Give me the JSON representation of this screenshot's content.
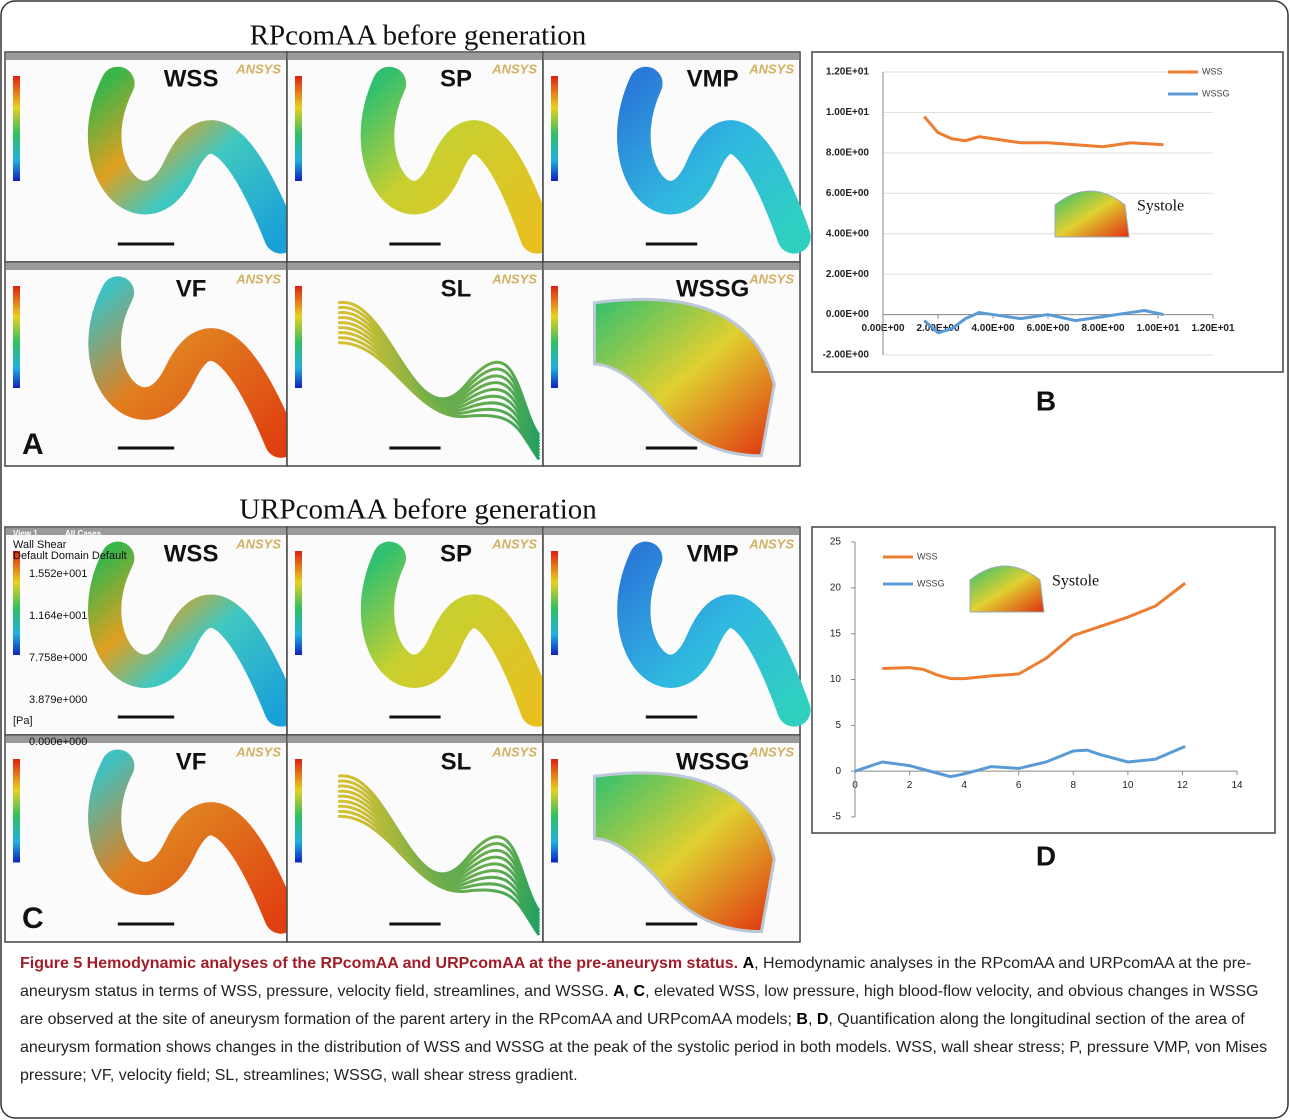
{
  "sections": [
    {
      "title": "RPcomAA before generation",
      "panel_label": "A",
      "chart_label": "B",
      "views": [
        "WSS",
        "SP",
        "VMP",
        "VF",
        "SL",
        "WSSG"
      ]
    },
    {
      "title": "URPcomAA before generation",
      "panel_label": "C",
      "chart_label": "D",
      "views": [
        "WSS",
        "SP",
        "VMP",
        "VF",
        "SL",
        "WSSG"
      ]
    }
  ],
  "software_logo": "ANSYS",
  "legend_example": {
    "view": "View 1",
    "cases": "All Cases",
    "title": "Wall Shear",
    "subtitle": "Default Domain Default",
    "ticks": [
      "1.552e+001",
      "1.164e+001",
      "7.758e+000",
      "3.879e+000",
      "0.000e+000"
    ],
    "unit": "[Pa]"
  },
  "chart_data": [
    {
      "type": "line",
      "annotation": "Systole",
      "legend": "upper right",
      "grid": true,
      "xlim": [
        0,
        12
      ],
      "ylim": [
        -2,
        12
      ],
      "xticks": [
        {
          "value": 0,
          "label": "0.00E+00"
        },
        {
          "value": 2,
          "label": "2.00E+00"
        },
        {
          "value": 4,
          "label": "4.00E+00"
        },
        {
          "value": 6,
          "label": "6.00E+00"
        },
        {
          "value": 8,
          "label": "8.00E+00"
        },
        {
          "value": 10,
          "label": "1.00E+01"
        },
        {
          "value": 12,
          "label": "1.20E+01"
        }
      ],
      "yticks": [
        {
          "value": -2,
          "label": "-2.00E+00"
        },
        {
          "value": 0,
          "label": "0.00E+00"
        },
        {
          "value": 2,
          "label": "2.00E+00"
        },
        {
          "value": 4,
          "label": "4.00E+00"
        },
        {
          "value": 6,
          "label": "6.00E+00"
        },
        {
          "value": 8,
          "label": "8.00E+00"
        },
        {
          "value": 10,
          "label": "1.00E+01"
        },
        {
          "value": 12,
          "label": "1.20E+01"
        }
      ],
      "series": [
        {
          "name": "WSS",
          "color": "#ed7d31",
          "x": [
            1.5,
            2,
            2.5,
            3,
            3.5,
            4,
            5,
            6,
            7,
            8,
            9,
            10.2
          ],
          "values": [
            9.8,
            9.0,
            8.7,
            8.6,
            8.8,
            8.7,
            8.5,
            8.5,
            8.4,
            8.3,
            8.5,
            8.4
          ]
        },
        {
          "name": "WSSG",
          "color": "#5b9bd5",
          "x": [
            1.5,
            2,
            2.5,
            3,
            3.5,
            4,
            5,
            6,
            7,
            8,
            9,
            9.5,
            10.2
          ],
          "values": [
            -0.3,
            -0.9,
            -0.7,
            -0.2,
            0.1,
            0.0,
            -0.2,
            0.0,
            -0.3,
            -0.1,
            0.1,
            0.2,
            0.0
          ]
        }
      ]
    },
    {
      "type": "line",
      "annotation": "Systole",
      "legend": "upper left",
      "grid": false,
      "xlim": [
        0,
        14
      ],
      "ylim": [
        -5,
        25
      ],
      "xticks": [
        0,
        2,
        4,
        6,
        8,
        10,
        12,
        14
      ],
      "yticks": [
        -5,
        0,
        5,
        10,
        15,
        20,
        25
      ],
      "series": [
        {
          "name": "WSS",
          "color": "#ed7d31",
          "x": [
            1,
            2,
            2.5,
            3,
            3.5,
            4,
            5,
            6,
            7,
            8,
            9,
            10,
            11,
            12.1
          ],
          "values": [
            11.2,
            11.3,
            11.1,
            10.5,
            10.1,
            10.1,
            10.4,
            10.6,
            12.3,
            14.8,
            15.8,
            16.8,
            18.0,
            20.5
          ]
        },
        {
          "name": "WSSG",
          "color": "#5b9bd5",
          "x": [
            0,
            1,
            2,
            3,
            3.5,
            4,
            5,
            6,
            7,
            8,
            8.5,
            9,
            10,
            11,
            12.1
          ],
          "values": [
            0,
            1.0,
            0.6,
            -0.2,
            -0.6,
            -0.3,
            0.5,
            0.3,
            1.0,
            2.2,
            2.3,
            1.8,
            1.0,
            1.3,
            2.7
          ]
        }
      ]
    }
  ],
  "caption": {
    "title": "Figure 5 Hemodynamic analyses of the RPcomAA and URPcomAA at the pre-aneurysm status.",
    "body": [
      "A",
      ", Hemodynamic analyses in the RPcomAA and URPcomAA at the pre-aneurysm status in terms of WSS, pressure, velocity field, streamlines, and WSSG. ",
      "A",
      ", ",
      "C",
      ", elevated WSS, low pressure, high blood-flow velocity, and obvious changes in WSSG are observed at the site of aneurysm formation of the parent artery in the RPcomAA and URPcomAA models; ",
      "B",
      ", ",
      "D",
      ", Quantification along the longitudinal section of the area of aneurysm formation shows changes in the distribution of WSS and WSSG at the peak of the systolic period in both models. WSS, wall shear stress; P, pressure VMP, von Mises pressure; VF, velocity field; SL, streamlines; WSSG, wall shear stress gradient."
    ]
  }
}
